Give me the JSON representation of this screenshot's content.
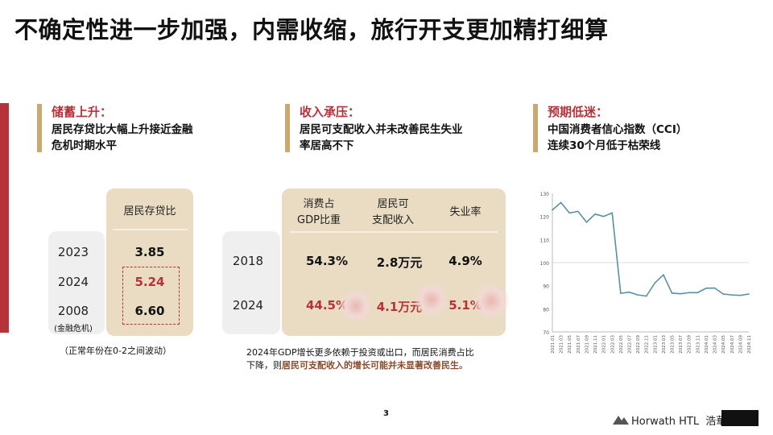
{
  "title": "不确定性进一步加强，内需收缩，旅行开支更加精打细算",
  "sections": [
    {
      "heading": "储蓄上升：",
      "body_line1": "居民存贷比大幅上升接近金融",
      "body_line2": "危机时期水平"
    },
    {
      "heading": "收入承压：",
      "body_line1": "居民可支配收入并未改善民生失业",
      "body_line2": "率居高不下"
    },
    {
      "heading": "预期低迷：",
      "body_line1": "中国消费者信心指数（CCI）",
      "body_line2": "连续30个月低于枯荣线"
    }
  ],
  "deposit_panel": {
    "header": "居民存贷比",
    "rows": [
      {
        "year": "2023",
        "value": "3.85"
      },
      {
        "year": "2024",
        "value": "5.24"
      },
      {
        "year": "2008",
        "value": "6.60",
        "sublabel": "(金融危机)"
      }
    ],
    "note": "（正常年份在0-2之间波动）"
  },
  "income_panel": {
    "headers": [
      {
        "line1": "消费占",
        "line2": "GDP比重"
      },
      {
        "line1": "居民可",
        "line2": "支配收入"
      },
      {
        "line1": "失业率",
        "line2": ""
      }
    ],
    "rows": [
      {
        "year": "2018",
        "values": [
          "54.3%",
          "2.8万元",
          "4.9%"
        ]
      },
      {
        "year": "2024",
        "values": [
          "44.5%",
          "4.1万元",
          "5.1%"
        ]
      }
    ],
    "note_line1": "2024年GDP增长更多依赖于投资或出口，而居民消费占比",
    "note_line2_plain": "下降，则",
    "note_line2_emph": "居民可支配收入的增长可能并未显著改善民生",
    "note_line2_end": "。"
  },
  "chart_data": {
    "type": "line",
    "title": "",
    "xlabel": "",
    "ylabel": "",
    "ylim": [
      70,
      130
    ],
    "yticks": [
      70,
      80,
      90,
      100,
      110,
      120,
      130
    ],
    "reference_line": 100,
    "x": [
      "2021.01",
      "2021.03",
      "2021.05",
      "2021.07",
      "2021.09",
      "2021.11",
      "2022.01",
      "2022.03",
      "2022.05",
      "2022.07",
      "2022.09",
      "2022.11",
      "2023.01",
      "2023.03",
      "2023.05",
      "2023.07",
      "2023.09",
      "2023.11",
      "2024.01",
      "2024.03",
      "2024.05",
      "2024.07",
      "2024.09",
      "2024.11"
    ],
    "series": [
      {
        "values": [
          122.8,
          126.0,
          121.5,
          122.2,
          117.5,
          121.0,
          120.0,
          121.5,
          86.7,
          87.2,
          86.0,
          85.5,
          91.2,
          94.7,
          86.8,
          86.5,
          87.0,
          87.0,
          88.9,
          89.0,
          86.4,
          86.0,
          85.8,
          86.4
        ],
        "color": "#5b8fa3"
      }
    ]
  },
  "page_number": "3",
  "footer": {
    "brand": "Horwath HTL",
    "brand_cn": "浩華"
  }
}
